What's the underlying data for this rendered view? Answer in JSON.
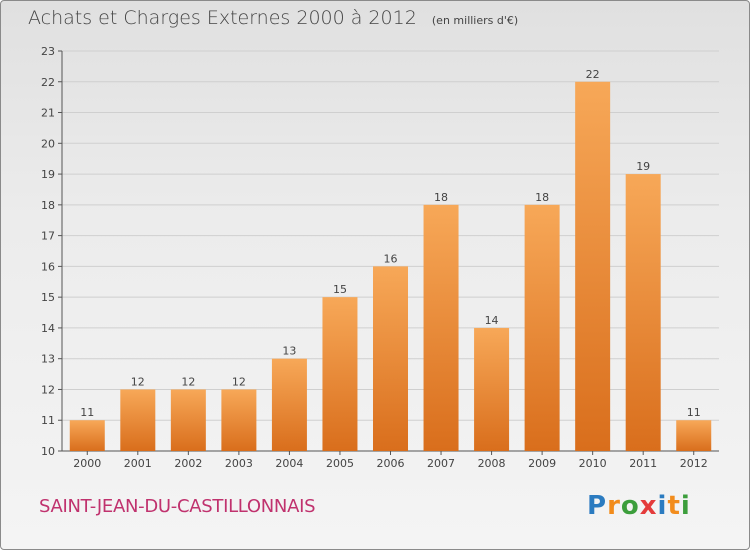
{
  "header": {
    "title": "Achats et Charges Externes 2000 à 2012",
    "unit": "(en milliers d'€)"
  },
  "footer": {
    "commune": "SAINT-JEAN-DU-CASTILLONNAIS",
    "logo": "Proxiti",
    "logo_letters": [
      {
        "ch": "P",
        "color": "#2b7bc0"
      },
      {
        "ch": "r",
        "color": "#f28c1c"
      },
      {
        "ch": "o",
        "color": "#3c9e3c"
      },
      {
        "ch": "x",
        "color": "#e43b3b"
      },
      {
        "ch": "i",
        "color": "#2b7bc0"
      },
      {
        "ch": "t",
        "color": "#f28c1c"
      },
      {
        "ch": "i",
        "color": "#3c9e3c"
      }
    ]
  },
  "colors": {
    "bar_top": "#f7a858",
    "bar_bottom": "#d96e1c",
    "grid": "#cfcfcf",
    "axis_text": "#444444"
  },
  "chart_data": {
    "type": "bar",
    "categories": [
      "2000",
      "2001",
      "2002",
      "2003",
      "2004",
      "2005",
      "2006",
      "2007",
      "2008",
      "2009",
      "2010",
      "2011",
      "2012"
    ],
    "values": [
      11,
      12,
      12,
      12,
      13,
      15,
      16,
      18,
      14,
      18,
      22,
      19,
      11
    ],
    "ylim": [
      10,
      23
    ],
    "yticks": [
      10,
      11,
      12,
      13,
      14,
      15,
      16,
      17,
      18,
      19,
      20,
      21,
      22,
      23
    ],
    "grid": true,
    "legend": "none"
  }
}
